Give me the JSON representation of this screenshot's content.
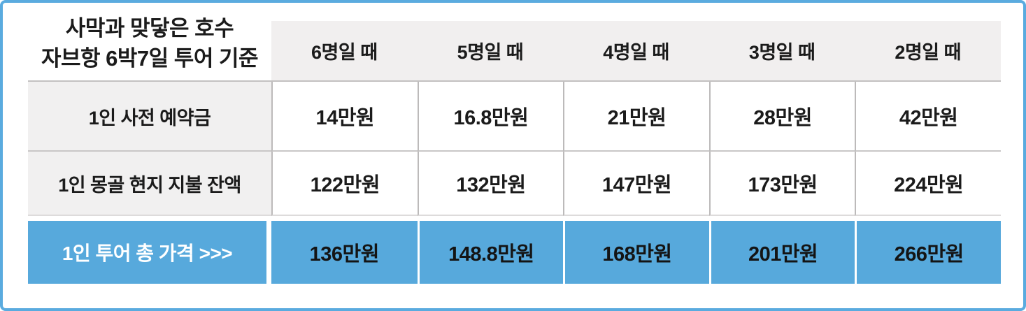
{
  "chart_data": {
    "type": "table",
    "title_lines": [
      "사막과 맞닿은 호수",
      "자브항 6박7일 투어 기준"
    ],
    "columns": [
      "6명일 때",
      "5명일 때",
      "4명일 때",
      "3명일 때",
      "2명일 때"
    ],
    "rows": [
      {
        "label": "1인 사전 예약금",
        "values": [
          "14만원",
          "16.8만원",
          "21만원",
          "28만원",
          "42만원"
        ]
      },
      {
        "label": "1인 몽골 현지 지불 잔액",
        "values": [
          "122만원",
          "132만원",
          "147만원",
          "173만원",
          "224만원"
        ]
      },
      {
        "label": "1인 투어 총 가격  >>>",
        "values": [
          "136만원",
          "148.8만원",
          "168만원",
          "201만원",
          "266만원"
        ],
        "highlight": true
      }
    ],
    "unit": "만원 (10,000 KRW)",
    "layout": {
      "highlight_row_index": 2,
      "grid": "on"
    }
  },
  "colors": {
    "accent_blue": "#57a9dc",
    "border_blue": "#5aabdf",
    "header_gray": "#f1efef",
    "label_gray": "#f1f0f0",
    "line_gray": "#c3c1c1",
    "text_dark": "#1b1b1b",
    "text_white": "#ffffff"
  }
}
